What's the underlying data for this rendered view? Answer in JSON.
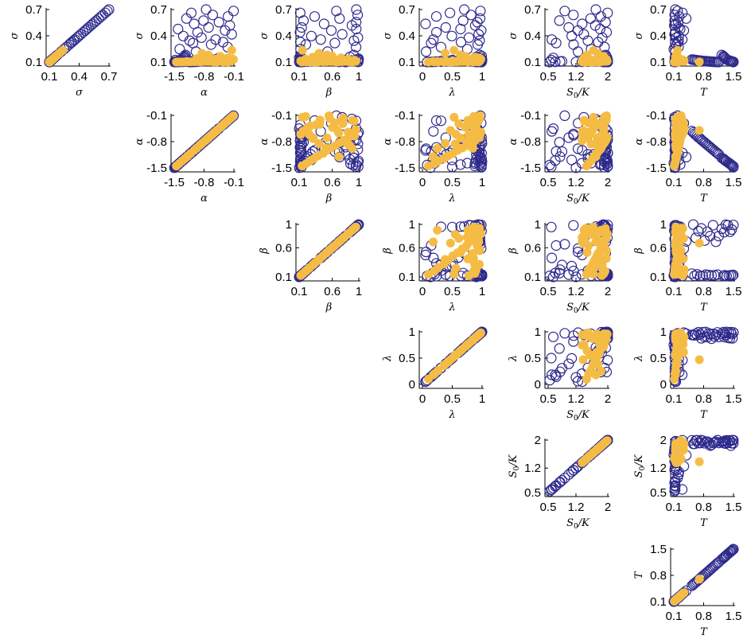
{
  "chart_data": {
    "type": "scatter",
    "layout": "upper-triangular scatterplot matrix",
    "variables": [
      {
        "label": "σ",
        "sub": "",
        "suffix": "",
        "range": [
          0.1,
          0.7
        ],
        "ticks": [
          "0.1",
          "0.4",
          "0.7"
        ]
      },
      {
        "label": "α",
        "sub": "",
        "suffix": "",
        "range": [
          -1.5,
          -0.1
        ],
        "ticks": [
          "-1.5",
          "-0.8",
          "-0.1"
        ]
      },
      {
        "label": "β",
        "sub": "",
        "suffix": "",
        "range": [
          0.1,
          1.0
        ],
        "ticks": [
          "0.1",
          "0.6",
          "1"
        ]
      },
      {
        "label": "λ",
        "sub": "",
        "suffix": "",
        "range": [
          0,
          1.0
        ],
        "ticks": [
          "0",
          "0.5",
          "1"
        ]
      },
      {
        "label": "S",
        "sub": "0",
        "suffix": "/K",
        "range": [
          0.5,
          2.0
        ],
        "ticks": [
          "0.5",
          "1.2",
          "2"
        ]
      },
      {
        "label": "T",
        "sub": "",
        "suffix": "",
        "range": [
          0.1,
          1.5
        ],
        "ticks": [
          "0.1",
          "0.8",
          "1.5"
        ]
      }
    ],
    "series": [
      {
        "style": "open circles",
        "color": "#2E2A8C",
        "points": [
          [
            0.1,
            -1.483,
            0.134,
            0.988,
            1.906,
            1.496
          ],
          [
            0.103,
            -1.461,
            0.991,
            0.987,
            1.998,
            1.498
          ],
          [
            0.105,
            -1.447,
            0.121,
            0.877,
            1.997,
            1.475
          ],
          [
            0.108,
            -1.426,
            0.913,
            0.957,
            1.911,
            1.458
          ],
          [
            0.111,
            -1.411,
            0.13,
            0.994,
            1.84,
            1.439
          ],
          [
            0.114,
            -1.389,
            0.875,
            0.881,
            1.985,
            1.419
          ],
          [
            0.118,
            -1.372,
            0.124,
            0.975,
            1.992,
            1.393
          ],
          [
            0.123,
            -1.352,
            0.985,
            0.886,
            1.925,
            1.37
          ],
          [
            0.13,
            -1.33,
            0.117,
            0.999,
            1.99,
            1.34
          ],
          [
            0.139,
            -1.313,
            0.995,
            0.941,
            1.901,
            1.32
          ],
          [
            0.15,
            -1.292,
            0.128,
            0.972,
            1.982,
            1.296
          ],
          [
            0.158,
            -1.272,
            0.866,
            0.901,
            1.912,
            1.281
          ],
          [
            0.168,
            -1.256,
            0.119,
            0.994,
            1.957,
            1.263
          ],
          [
            0.181,
            -1.235,
            0.923,
            0.962,
            1.946,
            1.226
          ],
          [
            0.101,
            -1.14,
            0.8,
            0.903,
            1.918,
            1.154
          ],
          [
            0.101,
            -1.11,
            0.139,
            0.99,
            1.998,
            1.125
          ],
          [
            0.102,
            -1.078,
            0.703,
            0.947,
            1.952,
            1.087
          ],
          [
            0.103,
            -1.045,
            0.127,
            0.912,
            1.93,
            1.055
          ],
          [
            0.104,
            -1.012,
            0.986,
            0.96,
            1.92,
            1.021
          ],
          [
            0.105,
            -0.978,
            0.126,
            0.87,
            1.867,
            0.984
          ],
          [
            0.106,
            -0.947,
            0.801,
            0.951,
            1.844,
            0.953
          ],
          [
            0.107,
            -0.914,
            0.133,
            0.971,
            1.904,
            0.919
          ],
          [
            0.109,
            -0.884,
            0.875,
            0.9,
            1.955,
            0.887
          ],
          [
            0.11,
            -0.848,
            0.139,
            0.997,
            1.955,
            0.849
          ],
          [
            0.111,
            -0.819,
            0.723,
            0.905,
            1.909,
            0.821
          ],
          [
            0.113,
            -0.784,
            0.116,
            0.992,
            1.981,
            0.78
          ],
          [
            0.115,
            -0.751,
            0.932,
            0.878,
            1.997,
            0.745
          ],
          [
            0.117,
            -0.718,
            0.119,
            0.952,
            1.917,
            0.718
          ],
          [
            0.118,
            -0.688,
            0.886,
            0.992,
            1.916,
            0.678
          ],
          [
            0.121,
            -0.652,
            0.145,
            0.935,
            1.996,
            0.646
          ],
          [
            0.123,
            -0.619,
            0.77,
            0.965,
            1.99,
            0.616
          ],
          [
            0.125,
            -0.589,
            0.119,
            0.935,
            1.891,
            0.585
          ],
          [
            0.127,
            -0.551,
            0.997,
            0.936,
            1.892,
            0.558
          ],
          [
            0.129,
            -0.518,
            0.157,
            0.941,
            1.993,
            0.523
          ],
          [
            0.102,
            -1.495,
            0.102,
            0.133,
            1.2,
            0.126
          ],
          [
            0.103,
            -1.374,
            0.145,
            0.203,
            1.35,
            0.133
          ],
          [
            0.105,
            -1.251,
            0.209,
            0.314,
            1.5,
            0.127
          ],
          [
            0.108,
            -1.138,
            0.275,
            0.402,
            1.65,
            0.141
          ],
          [
            0.112,
            -1.024,
            0.342,
            0.511,
            1.78,
            0.122
          ],
          [
            0.117,
            -0.907,
            0.433,
            0.601,
            1.85,
            0.131
          ],
          [
            0.125,
            -0.789,
            0.51,
            0.697,
            1.95,
            0.143
          ],
          [
            0.101,
            -1.424,
            0.119,
            0.08,
            0.54,
            0.12
          ],
          [
            0.103,
            -1.303,
            0.167,
            0.175,
            0.68,
            0.135
          ],
          [
            0.106,
            -1.199,
            0.225,
            0.24,
            0.8,
            0.126
          ],
          [
            0.109,
            -1.065,
            0.305,
            0.307,
            0.85,
            0.14
          ],
          [
            0.123,
            -1.473,
            0.955,
            0.5,
            0.58,
            0.132
          ],
          [
            0.147,
            -0.452,
            0.101,
            0.904,
            0.63,
            0.125
          ],
          [
            0.219,
            -0.988,
            0.528,
            0.061,
            1.25,
            0.137
          ],
          [
            0.248,
            -1.372,
            0.121,
            0.752,
            1.58,
            0.1
          ],
          [
            0.271,
            -0.245,
            0.959,
            0.312,
            1.918,
            0.211
          ],
          [
            0.3,
            -0.633,
            0.202,
            0.927,
            1.14,
            0.163
          ],
          [
            0.317,
            -1.06,
            0.639,
            0.146,
            0.703,
            0.131
          ],
          [
            0.328,
            -0.354,
            0.118,
            0.646,
            1.76,
            0.185
          ],
          [
            0.345,
            -1.138,
            0.927,
            0.958,
            1.501,
            0.215
          ],
          [
            0.357,
            -0.527,
            0.426,
            0.184,
            0.592,
            0.298
          ],
          [
            0.379,
            -0.859,
            0.987,
            0.78,
            1.862,
            0.153
          ],
          [
            0.397,
            -1.288,
            0.285,
            0.494,
            1.092,
            0.217
          ],
          [
            0.417,
            -0.151,
            0.75,
            0.943,
            1.397,
            0.119
          ],
          [
            0.441,
            -0.952,
            0.113,
            0.235,
            1.97,
            0.141
          ],
          [
            0.461,
            -0.307,
            0.586,
            0.985,
            1.253,
            0.335
          ],
          [
            0.477,
            -1.411,
            0.962,
            0.639,
            1.808,
            0.249
          ],
          [
            0.495,
            -0.694,
            0.14,
            0.391,
            1.017,
            0.211
          ],
          [
            0.518,
            -0.195,
            0.897,
            0.885,
            1.686,
            0.111
          ],
          [
            0.536,
            -1.032,
            0.477,
            0.052,
            1.355,
            0.147
          ],
          [
            0.555,
            -0.451,
            0.96,
            0.921,
            1.944,
            0.203
          ],
          [
            0.574,
            -0.814,
            0.166,
            0.683,
            0.784,
            0.119
          ],
          [
            0.597,
            -1.212,
            0.71,
            0.966,
            1.567,
            0.391
          ],
          [
            0.621,
            -0.238,
            0.334,
            0.233,
            1.826,
            0.227
          ],
          [
            0.638,
            -0.597,
            0.983,
            0.815,
            1.136,
            0.12
          ],
          [
            0.662,
            -1.099,
            0.117,
            0.461,
            1.995,
            0.301
          ],
          [
            0.684,
            -0.108,
            0.661,
            0.972,
            0.917,
            0.189
          ],
          [
            0.7,
            -0.752,
            0.963,
            0.702,
            1.701,
            0.133
          ]
        ]
      },
      {
        "style": "filled circles",
        "color": "#F5BC45",
        "points": [
          [
            0.1,
            -1.449,
            0.144,
            0.1,
            1.468,
            0.111
          ],
          [
            0.101,
            -1.385,
            0.205,
            0.203,
            1.516,
            0.126
          ],
          [
            0.101,
            -1.317,
            0.263,
            0.265,
            1.574,
            0.141
          ],
          [
            0.102,
            -1.252,
            0.325,
            0.359,
            1.621,
            0.155
          ],
          [
            0.103,
            -1.177,
            0.386,
            0.431,
            1.667,
            0.17
          ],
          [
            0.104,
            -1.113,
            0.461,
            0.509,
            1.724,
            0.183
          ],
          [
            0.105,
            -1.033,
            0.515,
            0.589,
            1.787,
            0.198
          ],
          [
            0.106,
            -0.969,
            0.58,
            0.667,
            1.821,
            0.211
          ],
          [
            0.107,
            -0.907,
            0.646,
            0.745,
            1.866,
            0.225
          ],
          [
            0.108,
            -0.828,
            0.711,
            0.811,
            1.921,
            0.236
          ],
          [
            0.109,
            -0.761,
            0.779,
            0.888,
            1.953,
            0.25
          ],
          [
            0.111,
            -0.689,
            0.841,
            0.954,
            1.986,
            0.262
          ],
          [
            0.112,
            -0.61,
            0.124,
            0.78,
            1.85,
            0.3
          ],
          [
            0.114,
            -0.52,
            0.16,
            0.88,
            1.9,
            0.33
          ],
          [
            0.116,
            -0.43,
            0.225,
            0.9,
            1.88,
            0.34
          ],
          [
            0.119,
            -0.34,
            0.41,
            0.76,
            1.8,
            0.32
          ],
          [
            0.122,
            -0.25,
            0.93,
            0.84,
            1.94,
            0.31
          ],
          [
            0.126,
            -0.17,
            0.765,
            0.92,
            1.96,
            0.28
          ],
          [
            0.13,
            -0.11,
            0.55,
            0.96,
            1.97,
            0.27
          ],
          [
            0.135,
            -0.13,
            0.2,
            0.86,
            1.93,
            0.25
          ],
          [
            0.101,
            -0.232,
            0.905,
            0.76,
            1.402,
            0.218
          ],
          [
            0.102,
            -0.351,
            0.353,
            0.864,
            1.797,
            0.179
          ],
          [
            0.103,
            -0.574,
            0.699,
            0.943,
            1.358,
            0.155
          ],
          [
            0.104,
            -0.893,
            0.86,
            0.84,
            1.77,
            0.141
          ],
          [
            0.105,
            -0.301,
            0.635,
            0.918,
            1.515,
            0.142
          ],
          [
            0.107,
            -0.695,
            0.316,
            0.954,
            1.733,
            0.144
          ],
          [
            0.109,
            -0.486,
            0.955,
            0.871,
            1.625,
            0.15
          ],
          [
            0.112,
            -0.183,
            0.561,
            0.962,
            1.904,
            0.15
          ],
          [
            0.115,
            -0.774,
            0.78,
            0.748,
            1.356,
            0.176
          ],
          [
            0.118,
            -0.384,
            0.264,
            0.889,
            1.656,
            0.212
          ],
          [
            0.122,
            -0.645,
            0.935,
            0.957,
            1.458,
            0.271
          ],
          [
            0.127,
            -0.226,
            0.417,
            0.857,
            1.963,
            0.295
          ],
          [
            0.133,
            -0.545,
            0.84,
            0.98,
            1.52,
            0.245
          ],
          [
            0.14,
            -0.976,
            0.505,
            0.845,
            1.76,
            0.188
          ],
          [
            0.147,
            -0.25,
            0.731,
            0.94,
            1.41,
            0.16
          ],
          [
            0.156,
            -0.72,
            0.306,
            0.881,
            1.857,
            0.14
          ],
          [
            0.102,
            -0.5,
            0.68,
            0.47,
            1.38,
            0.7
          ],
          [
            0.106,
            -0.32,
            0.76,
            0.61,
            1.72,
            0.33
          ],
          [
            0.11,
            -0.86,
            0.83,
            0.55,
            1.58,
            0.22
          ],
          [
            0.165,
            -0.42,
            0.6,
            0.72,
            1.9,
            0.18
          ],
          [
            0.182,
            -0.7,
            0.52,
            0.64,
            1.48,
            0.16
          ],
          [
            0.2,
            -0.85,
            0.4,
            0.38,
            1.75,
            0.17
          ],
          [
            0.235,
            -0.15,
            0.15,
            0.53,
            1.64,
            0.19
          ],
          [
            0.107,
            -0.98,
            0.9,
            0.25,
            1.83,
            0.15
          ],
          [
            0.106,
            -1.2,
            0.7,
            0.18,
            1.7,
            0.14
          ],
          [
            0.105,
            -0.6,
            0.25,
            0.56,
            1.55,
            0.13
          ]
        ]
      }
    ]
  }
}
